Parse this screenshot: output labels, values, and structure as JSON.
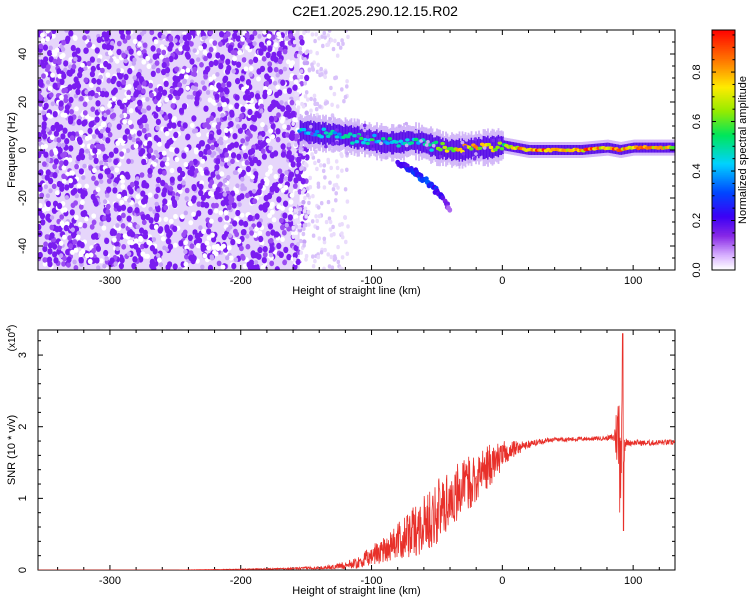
{
  "title": "C2E1.2025.290.12.15.R02",
  "chart_data": [
    {
      "type": "heatmap",
      "xlabel": "Height of straight line (km)",
      "ylabel": "Frequency (Hz)",
      "xlim": [
        -355,
        132
      ],
      "ylim": [
        -50,
        50
      ],
      "xticks": [
        -300,
        -200,
        -100,
        0,
        100
      ],
      "yticks": [
        -40,
        -20,
        0,
        20,
        40
      ],
      "colorbar": {
        "label": "Normalized spectral amplitude",
        "range": [
          0,
          0.97
        ],
        "ticks": [
          0.0,
          0.2,
          0.4,
          0.6,
          0.8
        ]
      },
      "noise_region": {
        "x_from": -355,
        "x_to": -155,
        "freq_from": -50,
        "freq_to": 50,
        "amplitude": 0.08
      },
      "signal_track": {
        "x": [
          -155,
          -140,
          -120,
          -100,
          -90,
          -80,
          -70,
          -60,
          -50,
          -40,
          -30,
          -20,
          -10,
          0,
          20,
          40,
          60,
          80,
          90,
          100,
          132
        ],
        "freq": [
          8,
          7,
          6,
          4,
          3,
          3,
          4,
          3,
          1,
          0,
          0,
          1,
          1,
          2,
          0,
          0,
          0,
          1,
          0,
          1,
          1
        ],
        "amplitude": [
          0.45,
          0.5,
          0.5,
          0.55,
          0.5,
          0.55,
          0.5,
          0.55,
          0.6,
          0.75,
          0.8,
          0.8,
          0.85,
          0.7,
          0.9,
          0.92,
          0.9,
          0.88,
          0.85,
          0.85,
          0.8
        ]
      },
      "secondary_branch": {
        "x": [
          -80,
          -70,
          -60,
          -50,
          -45,
          -40
        ],
        "freq": [
          -5,
          -8,
          -12,
          -17,
          -20,
          -25
        ],
        "amplitude": [
          0.2,
          0.25,
          0.3,
          0.25,
          0.2,
          0.1
        ]
      }
    },
    {
      "type": "line",
      "xlabel": "Height of straight line (km)",
      "ylabel": "SNR (10 * v/v)",
      "y_multiplier": "(x10",
      "y_multiplier_exp": "4",
      "xlim": [
        -355,
        132
      ],
      "ylim": [
        0,
        3.35
      ],
      "xticks": [
        -300,
        -200,
        -100,
        0,
        100
      ],
      "yticks": [
        0,
        1,
        2,
        3
      ],
      "series": [
        {
          "name": "SNR",
          "color": "#e8302a",
          "x": [
            -355,
            -300,
            -250,
            -200,
            -160,
            -130,
            -110,
            -100,
            -90,
            -80,
            -70,
            -60,
            -50,
            -40,
            -30,
            -20,
            -10,
            0,
            10,
            20,
            30,
            40,
            60,
            80,
            85,
            88,
            90,
            92,
            94,
            96,
            100,
            110,
            120,
            132
          ],
          "values": [
            0.0,
            0.0,
            0.0,
            0.01,
            0.02,
            0.04,
            0.1,
            0.2,
            0.3,
            0.4,
            0.5,
            0.65,
            0.8,
            1.0,
            1.15,
            1.3,
            1.45,
            1.6,
            1.7,
            1.75,
            1.8,
            1.82,
            1.83,
            1.84,
            1.85,
            1.9,
            1.85,
            1.8,
            1.78,
            1.77,
            1.78,
            1.77,
            1.78,
            1.78
          ],
          "noise_amplitude": [
            0.0,
            0.0,
            0.0,
            0.005,
            0.01,
            0.03,
            0.08,
            0.15,
            0.2,
            0.25,
            0.35,
            0.4,
            0.45,
            0.45,
            0.4,
            0.35,
            0.3,
            0.2,
            0.1,
            0.06,
            0.04,
            0.03,
            0.03,
            0.03,
            0.06,
            0.5,
            1.2,
            0.6,
            0.08,
            0.04,
            0.04,
            0.04,
            0.04,
            0.04
          ],
          "spike": {
            "x": 92,
            "max": 3.3,
            "min": 0.55
          }
        }
      ]
    }
  ]
}
